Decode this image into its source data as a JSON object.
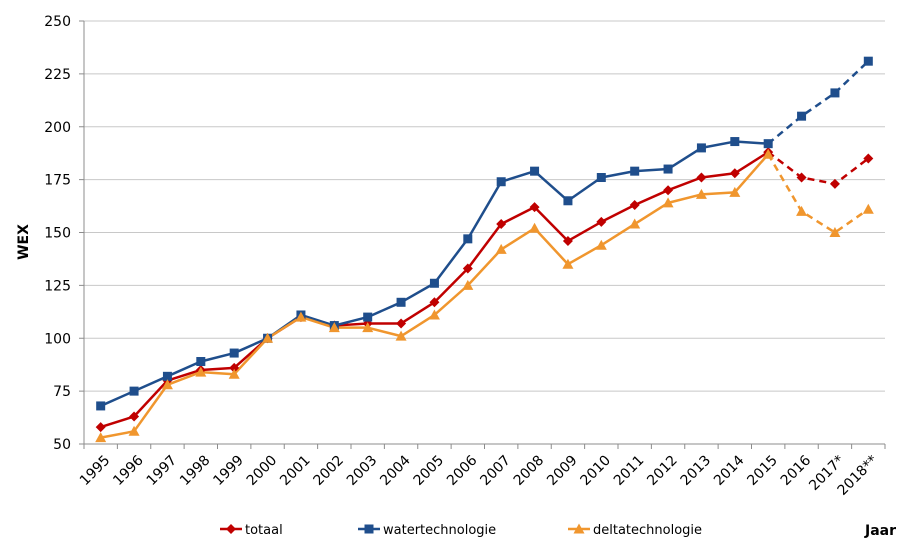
{
  "chart_data": {
    "type": "line",
    "title": "",
    "xlabel": "Jaar",
    "ylabel": "WEX",
    "ylim": [
      50,
      250
    ],
    "yticks": [
      50,
      75,
      100,
      125,
      150,
      175,
      200,
      225,
      250
    ],
    "grid": "horizontal",
    "legend": "bottom",
    "categories": [
      "1995",
      "1996",
      "1997",
      "1998",
      "1999",
      "2000",
      "2001",
      "2002",
      "2003",
      "2004",
      "2005",
      "2006",
      "2007",
      "2008",
      "2009",
      "2010",
      "2011",
      "2012",
      "2013",
      "2014",
      "2015",
      "2016",
      "2017*",
      "2018**"
    ],
    "dashed_from_index": 21,
    "series": [
      {
        "name": "totaal",
        "color": "#c00000",
        "marker": "diamond",
        "values": [
          58,
          63,
          80,
          85,
          86,
          100,
          110,
          106,
          107,
          107,
          117,
          133,
          154,
          162,
          146,
          155,
          163,
          170,
          176,
          178,
          188,
          176,
          173,
          185
        ]
      },
      {
        "name": "watertechnologie",
        "color": "#1f4e8c",
        "marker": "square",
        "values": [
          68,
          75,
          82,
          89,
          93,
          100,
          111,
          106,
          110,
          117,
          126,
          147,
          174,
          179,
          165,
          176,
          179,
          180,
          190,
          193,
          192,
          205,
          216,
          231
        ]
      },
      {
        "name": "deltatechnologie",
        "color": "#f0962e",
        "marker": "triangle",
        "values": [
          53,
          56,
          78,
          84,
          83,
          100,
          110,
          105,
          105,
          101,
          111,
          125,
          142,
          152,
          135,
          144,
          154,
          164,
          168,
          169,
          187,
          160,
          150,
          161
        ]
      }
    ]
  }
}
